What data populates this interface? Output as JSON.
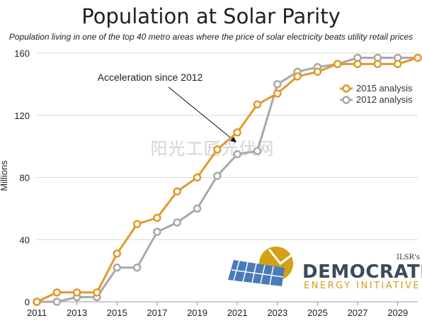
{
  "title": "Population at Solar Parity",
  "subtitle": "Population living in one of the top 40 metro areas where the price of solar electricity beats utility retail prices",
  "watermark": "阳光工匠光伏网",
  "logo": {
    "tag": "ILSR's",
    "main": "DEMOCRATIC",
    "sub": "ENERGY INITIATIVE"
  },
  "colors": {
    "series_2015": "#e09a2c",
    "series_2012": "#a8a8a8",
    "grid": "#d9d9d9",
    "logo_blue": "#4a7ab8",
    "logo_gold": "#d4a017"
  },
  "chart_data": {
    "type": "line",
    "title": "Population at Solar Parity",
    "ylabel": "Millions",
    "xlabel": "",
    "xlim": [
      2011,
      2030
    ],
    "ylim": [
      0,
      160
    ],
    "x_ticks": [
      2011,
      2013,
      2015,
      2017,
      2019,
      2021,
      2023,
      2025,
      2027,
      2029
    ],
    "y_ticks": [
      0,
      40,
      80,
      120,
      160
    ],
    "grid": "horizontal",
    "legend_position": "right",
    "series": [
      {
        "name": "2015 analysis",
        "x": [
          2011,
          2012,
          2013,
          2014,
          2015,
          2016,
          2017,
          2018,
          2019,
          2020,
          2021,
          2022,
          2023,
          2024,
          2025,
          2026,
          2027,
          2028,
          2029,
          2030
        ],
        "values": [
          0,
          6,
          6,
          6,
          31,
          50,
          54,
          71,
          80,
          98,
          109,
          127,
          134,
          145,
          148,
          153,
          153,
          153,
          153,
          157
        ]
      },
      {
        "name": "2012 analysis",
        "x": [
          2011,
          2012,
          2013,
          2014,
          2015,
          2016,
          2017,
          2018,
          2019,
          2020,
          2021,
          2022,
          2023,
          2024,
          2025,
          2026,
          2027,
          2028,
          2029,
          2030
        ],
        "values": [
          0,
          0,
          3,
          3,
          22,
          22,
          45,
          51,
          60,
          81,
          95,
          97,
          140,
          148,
          151,
          153,
          157,
          157,
          157,
          157
        ]
      }
    ],
    "annotations": [
      {
        "text": "Acceleration since 2012",
        "x": 2021,
        "y": 105
      }
    ]
  }
}
